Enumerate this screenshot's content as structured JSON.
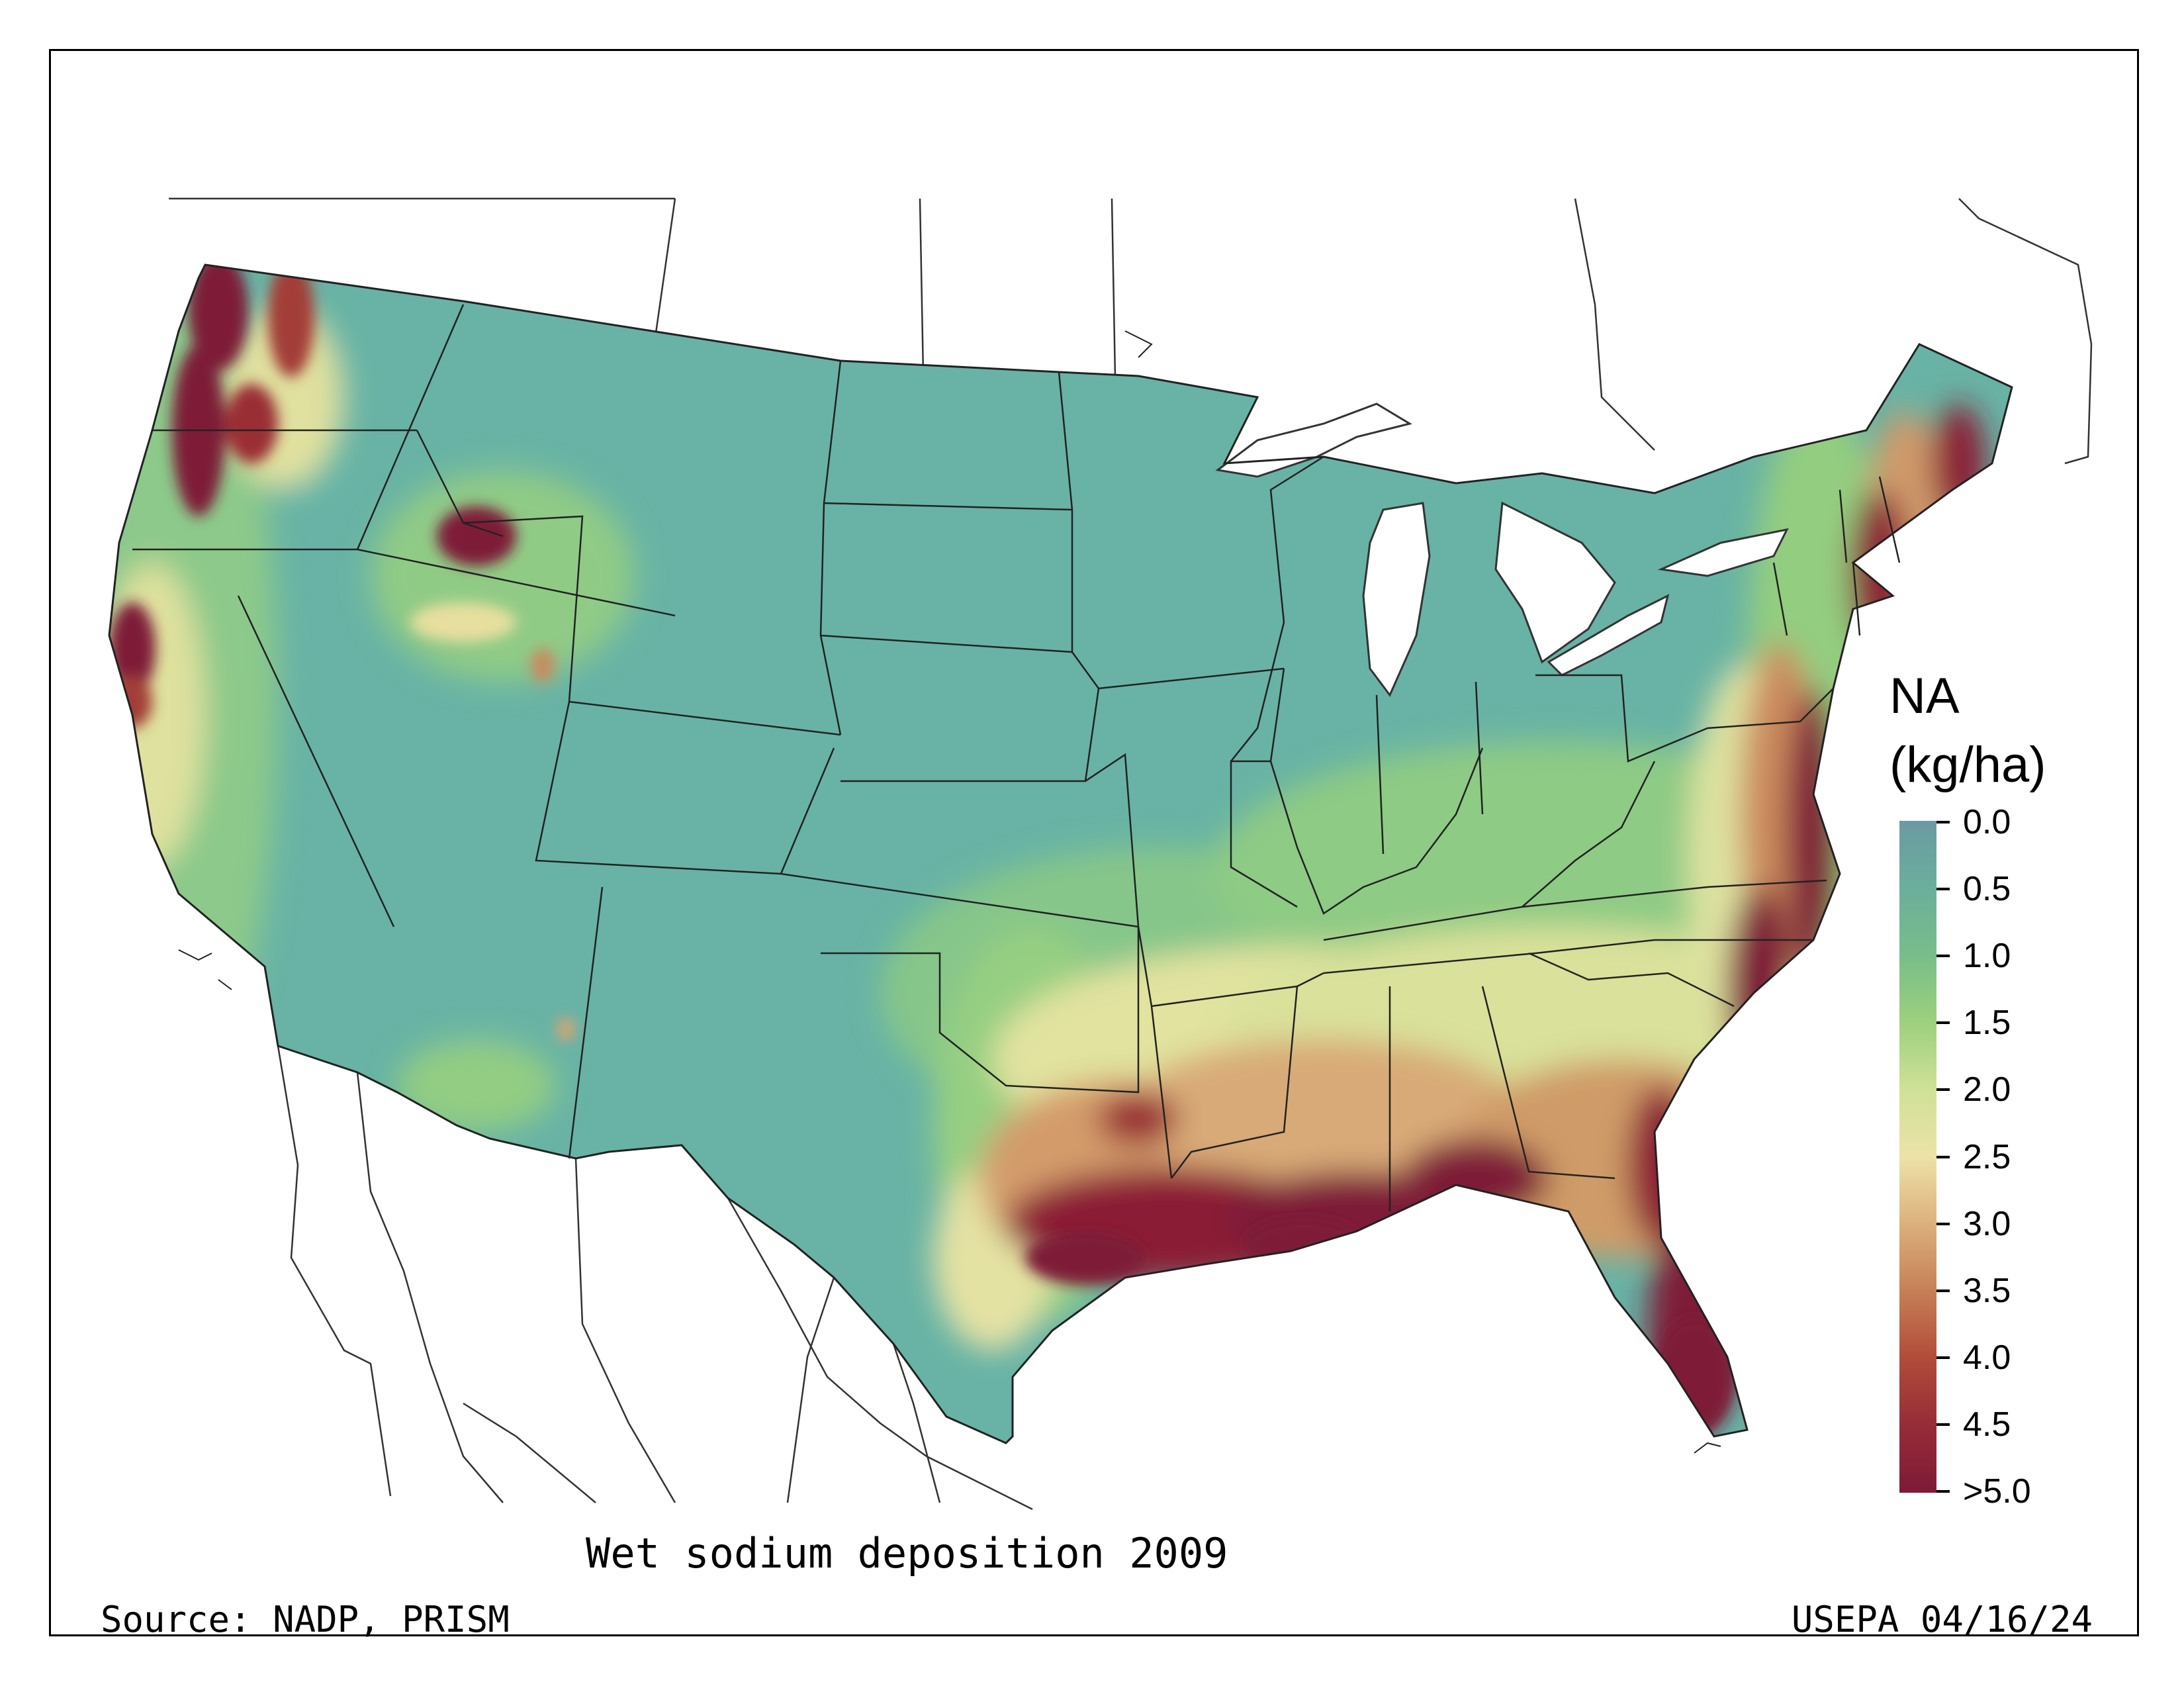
{
  "map": {
    "title": "Wet sodium deposition 2009",
    "source": "Source: NADP, PRISM",
    "credit": "USEPA 04/16/24",
    "variable": "wet sodium deposition",
    "region": "contiguous United States"
  },
  "legend": {
    "title_line1": "NA",
    "title_line2": "(kg/ha)",
    "ticks": [
      "0.0",
      "0.5",
      "1.0",
      "1.5",
      "2.0",
      "2.5",
      "3.0",
      "3.5",
      "4.0",
      "4.5",
      ">5.0"
    ],
    "colors": [
      "#6b9aa2",
      "#6bae9c",
      "#78bd8a",
      "#9dd07e",
      "#cfe197",
      "#ece2a8",
      "#dcb07c",
      "#c67f56",
      "#b14c3a",
      "#962c37",
      "#7e1a37"
    ]
  }
}
